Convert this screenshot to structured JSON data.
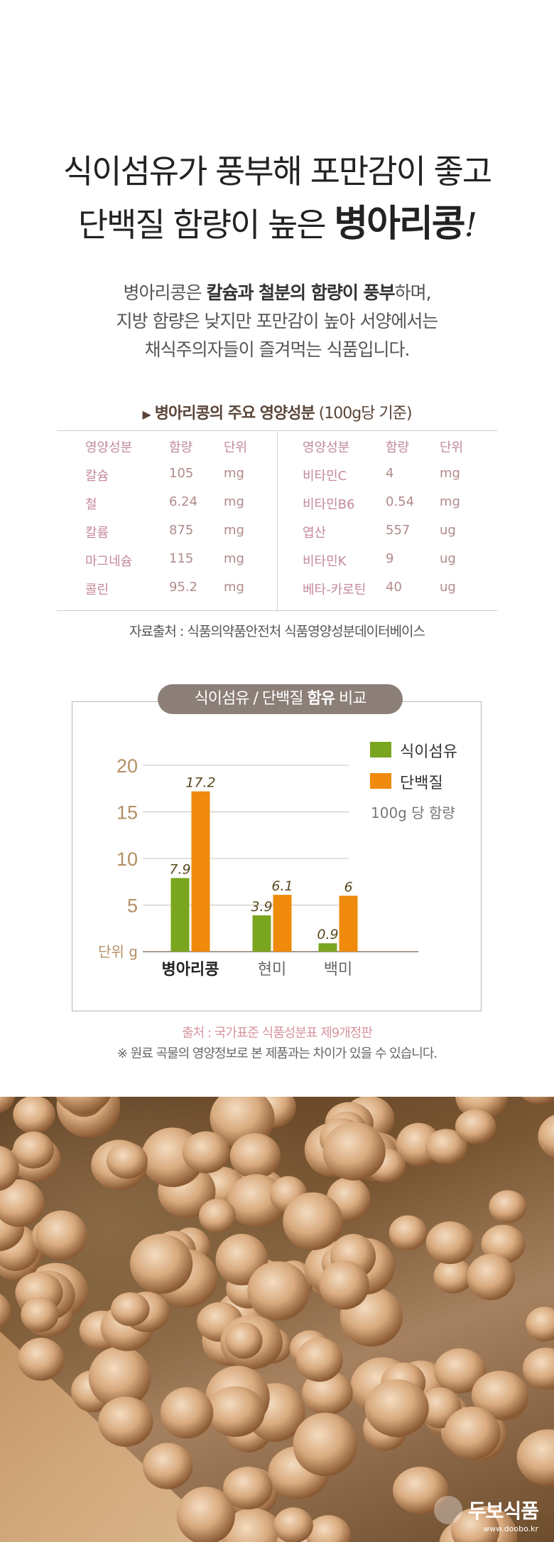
{
  "headline": {
    "line1": "식이섬유가 풍부해 포만감이 좋고",
    "line2_pre": "단백질 함량이 높은 ",
    "line2_strong": "병아리콩",
    "line2_bang": "!"
  },
  "intro": {
    "l1_a": "병아리콩은 ",
    "l1_b": "칼슘과 철분의 함량이 풍부",
    "l1_c": "하며,",
    "l2": "지방 함량은 낮지만 포만감이 높아 서양에서는",
    "l3": "채식주의자들이 즐겨먹는 식품입니다."
  },
  "nutrition_table": {
    "title_arrow": "▶",
    "title_bold": "병아리콩의 주요 영양성분",
    "title_rest": " (100g당 기준)",
    "headers": [
      "영양성분",
      "함량",
      "단위"
    ],
    "left_rows": [
      {
        "name": "칼슘",
        "amount": "105",
        "unit": "mg"
      },
      {
        "name": "철",
        "amount": "6.24",
        "unit": "mg"
      },
      {
        "name": "칼륨",
        "amount": "875",
        "unit": "mg"
      },
      {
        "name": "마그네슘",
        "amount": "115",
        "unit": "mg"
      },
      {
        "name": "콜린",
        "amount": "95.2",
        "unit": "mg"
      }
    ],
    "right_rows": [
      {
        "name": "비타민C",
        "amount": "4",
        "unit": "mg"
      },
      {
        "name": "비타민B6",
        "amount": "0.54",
        "unit": "mg"
      },
      {
        "name": "엽산",
        "amount": "557",
        "unit": "ug"
      },
      {
        "name": "비타민K",
        "amount": "9",
        "unit": "ug"
      },
      {
        "name": "베타-카로틴",
        "amount": "40",
        "unit": "ug"
      }
    ],
    "source": "자료출처 : 식품의약품안전처 식품영양성분데이터베이스"
  },
  "chart_pill": {
    "a": "식이섬유 / 단백질 ",
    "b": "함유",
    "c": " 비교"
  },
  "chart_data": {
    "type": "bar",
    "categories": [
      "병아리콩",
      "현미",
      "백미"
    ],
    "series": [
      {
        "name": "식이섬유",
        "values": [
          7.9,
          3.9,
          0.9
        ],
        "color": "#7aa51f"
      },
      {
        "name": "단백질",
        "values": [
          17.2,
          6.1,
          6
        ],
        "color": "#ef8a0c"
      }
    ],
    "value_labels": [
      [
        "7.9",
        "3.9",
        "0.9"
      ],
      [
        "17.2",
        "6.1",
        "6"
      ]
    ],
    "yticks": [
      "5",
      "10",
      "15",
      "20"
    ],
    "ytick_values": [
      5,
      10,
      15,
      20
    ],
    "ylim": [
      0,
      20
    ],
    "unit_label": "단위 g",
    "note": "100g 당 함량",
    "grid": true,
    "legend": "top-right"
  },
  "sources": {
    "s1": "출처 : 국가표준 식품성분표 제9개정판",
    "s2": "※ 원료 곡물의 영양정보로 본 제품과는 차이가 있을 수 있습니다."
  },
  "watermark": {
    "name": "두보식품",
    "url": "www.doobo.kr"
  }
}
